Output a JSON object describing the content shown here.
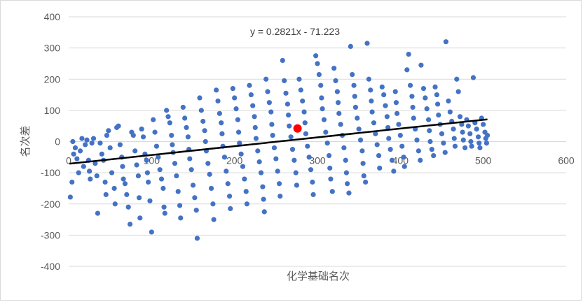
{
  "chart_data": {
    "type": "scatter",
    "xlabel": "化学基础名次",
    "ylabel": "名次差",
    "xlim": [
      0,
      600
    ],
    "ylim": [
      -400,
      400
    ],
    "xticks": [
      "0",
      "100",
      "200",
      "300",
      "400",
      "500",
      "600"
    ],
    "yticks": [
      "400",
      "300",
      "200",
      "100",
      "0",
      "-100",
      "-200",
      "-300",
      "-400"
    ],
    "grid": "horizontal",
    "legend": "none",
    "colors": {
      "points": "#4472C4",
      "highlight": "#FF0000",
      "trendline": "#000000",
      "grid": "#d9d9d9"
    },
    "trendline": {
      "equation": "y = 0.2821x - 71.223",
      "slope": 0.2821,
      "intercept": -71.223,
      "x_range": [
        1,
        505
      ]
    },
    "highlight_point": {
      "x": 276,
      "y": 42
    },
    "points": [
      [
        2,
        -178
      ],
      [
        4,
        -130
      ],
      [
        5,
        0
      ],
      [
        6,
        -40
      ],
      [
        8,
        -20
      ],
      [
        10,
        -55
      ],
      [
        12,
        -100
      ],
      [
        14,
        -30
      ],
      [
        16,
        10
      ],
      [
        18,
        -80
      ],
      [
        20,
        -10
      ],
      [
        22,
        5
      ],
      [
        24,
        -60
      ],
      [
        25,
        -95
      ],
      [
        26,
        -120
      ],
      [
        28,
        -5
      ],
      [
        30,
        10
      ],
      [
        32,
        -70
      ],
      [
        34,
        -110
      ],
      [
        35,
        -230
      ],
      [
        38,
        -5
      ],
      [
        40,
        -40
      ],
      [
        42,
        -60
      ],
      [
        44,
        -130
      ],
      [
        45,
        -170
      ],
      [
        46,
        20
      ],
      [
        48,
        35
      ],
      [
        50,
        -20
      ],
      [
        52,
        -100
      ],
      [
        55,
        -150
      ],
      [
        56,
        -200
      ],
      [
        58,
        45
      ],
      [
        60,
        50
      ],
      [
        62,
        -10
      ],
      [
        64,
        -50
      ],
      [
        65,
        -80
      ],
      [
        66,
        -120
      ],
      [
        68,
        -135
      ],
      [
        70,
        -170
      ],
      [
        72,
        -210
      ],
      [
        74,
        -265
      ],
      [
        76,
        30
      ],
      [
        78,
        20
      ],
      [
        80,
        -30
      ],
      [
        82,
        -75
      ],
      [
        84,
        -110
      ],
      [
        85,
        -180
      ],
      [
        86,
        -245
      ],
      [
        88,
        40
      ],
      [
        90,
        15
      ],
      [
        92,
        -40
      ],
      [
        94,
        -60
      ],
      [
        95,
        -100
      ],
      [
        96,
        -130
      ],
      [
        98,
        -190
      ],
      [
        100,
        -290
      ],
      [
        102,
        70
      ],
      [
        104,
        30
      ],
      [
        106,
        -15
      ],
      [
        108,
        -50
      ],
      [
        110,
        -90
      ],
      [
        112,
        -120
      ],
      [
        114,
        -150
      ],
      [
        115,
        -210
      ],
      [
        116,
        -230
      ],
      [
        118,
        100
      ],
      [
        120,
        80
      ],
      [
        122,
        60
      ],
      [
        124,
        20
      ],
      [
        125,
        -10
      ],
      [
        126,
        -35
      ],
      [
        128,
        -70
      ],
      [
        130,
        -110
      ],
      [
        132,
        -160
      ],
      [
        134,
        -205
      ],
      [
        135,
        -245
      ],
      [
        138,
        110
      ],
      [
        140,
        75
      ],
      [
        142,
        45
      ],
      [
        144,
        15
      ],
      [
        145,
        -25
      ],
      [
        146,
        -55
      ],
      [
        148,
        -90
      ],
      [
        150,
        -140
      ],
      [
        152,
        -180
      ],
      [
        154,
        -220
      ],
      [
        155,
        -310
      ],
      [
        158,
        140
      ],
      [
        160,
        100
      ],
      [
        162,
        65
      ],
      [
        164,
        35
      ],
      [
        165,
        0
      ],
      [
        166,
        -30
      ],
      [
        168,
        -70
      ],
      [
        170,
        -105
      ],
      [
        172,
        -150
      ],
      [
        174,
        -200
      ],
      [
        175,
        -250
      ],
      [
        178,
        165
      ],
      [
        180,
        130
      ],
      [
        182,
        90
      ],
      [
        184,
        60
      ],
      [
        185,
        25
      ],
      [
        186,
        -15
      ],
      [
        188,
        -50
      ],
      [
        190,
        -95
      ],
      [
        192,
        -135
      ],
      [
        194,
        -175
      ],
      [
        195,
        -215
      ],
      [
        198,
        170
      ],
      [
        200,
        140
      ],
      [
        202,
        105
      ],
      [
        204,
        70
      ],
      [
        205,
        30
      ],
      [
        206,
        -5
      ],
      [
        208,
        -40
      ],
      [
        210,
        -80
      ],
      [
        212,
        -120
      ],
      [
        214,
        -160
      ],
      [
        215,
        -200
      ],
      [
        218,
        180
      ],
      [
        220,
        150
      ],
      [
        222,
        115
      ],
      [
        224,
        80
      ],
      [
        225,
        45
      ],
      [
        226,
        10
      ],
      [
        228,
        -30
      ],
      [
        230,
        -65
      ],
      [
        232,
        -100
      ],
      [
        234,
        -145
      ],
      [
        235,
        -185
      ],
      [
        236,
        -225
      ],
      [
        238,
        200
      ],
      [
        240,
        160
      ],
      [
        242,
        125
      ],
      [
        244,
        95
      ],
      [
        245,
        55
      ],
      [
        246,
        20
      ],
      [
        248,
        -20
      ],
      [
        250,
        -55
      ],
      [
        252,
        -95
      ],
      [
        254,
        -135
      ],
      [
        255,
        -175
      ],
      [
        258,
        260
      ],
      [
        260,
        195
      ],
      [
        262,
        155
      ],
      [
        264,
        120
      ],
      [
        265,
        85
      ],
      [
        266,
        50
      ],
      [
        268,
        15
      ],
      [
        270,
        -25
      ],
      [
        272,
        -60
      ],
      [
        274,
        -100
      ],
      [
        275,
        -140
      ],
      [
        278,
        200
      ],
      [
        280,
        165
      ],
      [
        282,
        130
      ],
      [
        284,
        95
      ],
      [
        285,
        60
      ],
      [
        286,
        25
      ],
      [
        288,
        -15
      ],
      [
        290,
        -50
      ],
      [
        292,
        -90
      ],
      [
        294,
        -130
      ],
      [
        295,
        -170
      ],
      [
        298,
        275
      ],
      [
        300,
        250
      ],
      [
        302,
        215
      ],
      [
        304,
        180
      ],
      [
        305,
        140
      ],
      [
        306,
        105
      ],
      [
        308,
        70
      ],
      [
        310,
        30
      ],
      [
        312,
        -5
      ],
      [
        314,
        -45
      ],
      [
        315,
        -85
      ],
      [
        316,
        -120
      ],
      [
        318,
        -160
      ],
      [
        320,
        235
      ],
      [
        322,
        195
      ],
      [
        324,
        160
      ],
      [
        325,
        125
      ],
      [
        326,
        90
      ],
      [
        328,
        55
      ],
      [
        330,
        20
      ],
      [
        332,
        -20
      ],
      [
        334,
        -60
      ],
      [
        335,
        -100
      ],
      [
        336,
        -135
      ],
      [
        338,
        -165
      ],
      [
        340,
        305
      ],
      [
        342,
        215
      ],
      [
        344,
        180
      ],
      [
        345,
        145
      ],
      [
        346,
        110
      ],
      [
        348,
        75
      ],
      [
        350,
        40
      ],
      [
        352,
        5
      ],
      [
        354,
        -30
      ],
      [
        355,
        -70
      ],
      [
        356,
        -110
      ],
      [
        358,
        -130
      ],
      [
        360,
        315
      ],
      [
        362,
        200
      ],
      [
        364,
        165
      ],
      [
        365,
        130
      ],
      [
        366,
        95
      ],
      [
        368,
        60
      ],
      [
        370,
        25
      ],
      [
        372,
        -10
      ],
      [
        374,
        -45
      ],
      [
        375,
        -85
      ],
      [
        378,
        175
      ],
      [
        380,
        150
      ],
      [
        382,
        115
      ],
      [
        384,
        80
      ],
      [
        385,
        45
      ],
      [
        386,
        10
      ],
      [
        388,
        -25
      ],
      [
        390,
        -60
      ],
      [
        392,
        -95
      ],
      [
        394,
        160
      ],
      [
        395,
        125
      ],
      [
        396,
        90
      ],
      [
        398,
        55
      ],
      [
        400,
        20
      ],
      [
        402,
        -15
      ],
      [
        404,
        -50
      ],
      [
        405,
        -80
      ],
      [
        408,
        230
      ],
      [
        410,
        280
      ],
      [
        412,
        180
      ],
      [
        414,
        145
      ],
      [
        415,
        110
      ],
      [
        416,
        75
      ],
      [
        418,
        40
      ],
      [
        420,
        5
      ],
      [
        422,
        -30
      ],
      [
        424,
        -60
      ],
      [
        425,
        245
      ],
      [
        428,
        170
      ],
      [
        430,
        140
      ],
      [
        432,
        105
      ],
      [
        434,
        70
      ],
      [
        435,
        35
      ],
      [
        436,
        0
      ],
      [
        438,
        -25
      ],
      [
        440,
        -45
      ],
      [
        442,
        175
      ],
      [
        444,
        150
      ],
      [
        445,
        120
      ],
      [
        446,
        85
      ],
      [
        448,
        55
      ],
      [
        450,
        25
      ],
      [
        452,
        -5
      ],
      [
        454,
        -35
      ],
      [
        455,
        320
      ],
      [
        458,
        130
      ],
      [
        460,
        95
      ],
      [
        462,
        65
      ],
      [
        464,
        40
      ],
      [
        465,
        10
      ],
      [
        466,
        -15
      ],
      [
        468,
        200
      ],
      [
        470,
        160
      ],
      [
        472,
        80
      ],
      [
        474,
        55
      ],
      [
        475,
        30
      ],
      [
        476,
        5
      ],
      [
        478,
        -20
      ],
      [
        480,
        70
      ],
      [
        482,
        50
      ],
      [
        484,
        25
      ],
      [
        485,
        0
      ],
      [
        486,
        -15
      ],
      [
        488,
        205
      ],
      [
        490,
        60
      ],
      [
        492,
        40
      ],
      [
        494,
        15
      ],
      [
        495,
        -5
      ],
      [
        496,
        -20
      ],
      [
        498,
        75
      ],
      [
        500,
        55
      ],
      [
        502,
        30
      ],
      [
        503,
        10
      ],
      [
        504,
        -5
      ],
      [
        505,
        20
      ]
    ]
  }
}
